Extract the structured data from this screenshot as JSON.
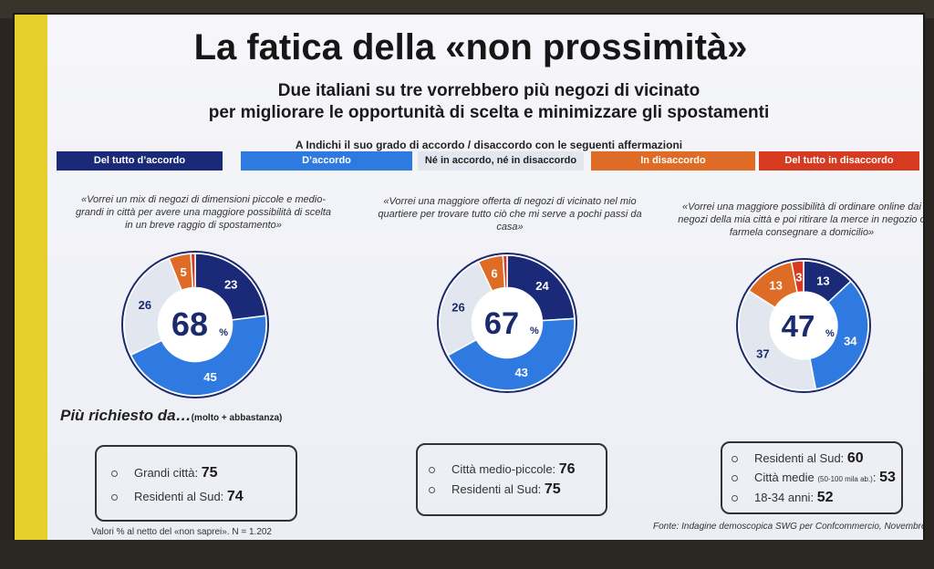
{
  "title": "La fatica della «non prossimità»",
  "subtitle_line1": "Due italiani su tre vorrebbero più negozi di vicinato",
  "subtitle_line2": "per migliorare le opportunità di scelta e minimizzare gli spostamenti",
  "question": "A Indichi il suo grado di accordo / disaccordo con le seguenti affermazioni",
  "legend": [
    {
      "label": "Del tutto d’accordo",
      "color": "#1b2a78",
      "text_color": "#ffffff"
    },
    {
      "label": "D’accordo",
      "color": "#2f7ae0",
      "text_color": "#ffffff"
    },
    {
      "label": "Né in accordo, né in disaccordo",
      "color": "#e2e6ef",
      "text_color": "#222222"
    },
    {
      "label": "In disaccordo",
      "color": "#de6b26",
      "text_color": "#ffffff"
    },
    {
      "label": "Del tutto in disaccordo",
      "color": "#d63a20",
      "text_color": "#ffffff"
    }
  ],
  "chart_data": [
    {
      "type": "pie",
      "statement": "«Vorrei un mix di negozi di dimensioni piccole e medio-grandi in città per avere una maggiore possibilità di scelta in un breve raggio di spostamento»",
      "center_value": "68",
      "center_unit": "%",
      "categories": [
        "Del tutto d’accordo",
        "D’accordo",
        "Né in accordo, né in disaccordo",
        "In disaccordo",
        "Del tutto in disaccordo"
      ],
      "values": [
        23,
        45,
        26,
        5,
        1
      ],
      "labels": [
        "23",
        "45",
        "26",
        "5",
        ""
      ]
    },
    {
      "type": "pie",
      "statement": "«Vorrei una maggiore offerta di negozi di vicinato nel mio quartiere per trovare tutto ciò che mi serve a pochi passi da casa»",
      "center_value": "67",
      "center_unit": "%",
      "categories": [
        "Del tutto d’accordo",
        "D’accordo",
        "Né in accordo, né in disaccordo",
        "In disaccordo",
        "Del tutto in disaccordo"
      ],
      "values": [
        24,
        43,
        26,
        6,
        1
      ],
      "labels": [
        "24",
        "43",
        "26",
        "6",
        ""
      ]
    },
    {
      "type": "pie",
      "statement": "«Vorrei una maggiore possibilità di ordinare online dai negozi della mia città e poi ritirare la merce in negozio o farmela consegnare a domicilio»",
      "center_value": "47",
      "center_unit": "%",
      "categories": [
        "Del tutto d’accordo",
        "D’accordo",
        "Né in accordo, né in disaccordo",
        "In disaccordo",
        "Del tutto in disaccordo"
      ],
      "values": [
        13,
        34,
        37,
        13,
        3
      ],
      "labels": [
        "13",
        "34",
        "37",
        "13",
        "3"
      ]
    }
  ],
  "more_requested": {
    "title": "Più richiesto da…",
    "subtitle": "(molto + abbastanza)",
    "boxes": [
      {
        "rows": [
          {
            "label": "Grandi città:",
            "detail": "",
            "value": "75"
          },
          {
            "label": "Residenti al Sud:",
            "detail": "",
            "value": "74"
          }
        ]
      },
      {
        "rows": [
          {
            "label": "Città medio-piccole:",
            "detail": "",
            "value": "76"
          },
          {
            "label": "Residenti al Sud:",
            "detail": "",
            "value": "75"
          }
        ]
      },
      {
        "rows": [
          {
            "label": "Residenti al Sud:",
            "detail": "",
            "value": "60"
          },
          {
            "label": "Città medie",
            "detail": "(50-100 mila ab.)",
            "value": "53"
          },
          {
            "label": "18-34 anni:",
            "detail": "",
            "value": "52"
          }
        ]
      }
    ]
  },
  "footnote": "Valori % al netto del «non saprei». N = 1.202",
  "source": "Fonte: Indagine demoscopica SWG per Confcommercio, Novembre 2023"
}
